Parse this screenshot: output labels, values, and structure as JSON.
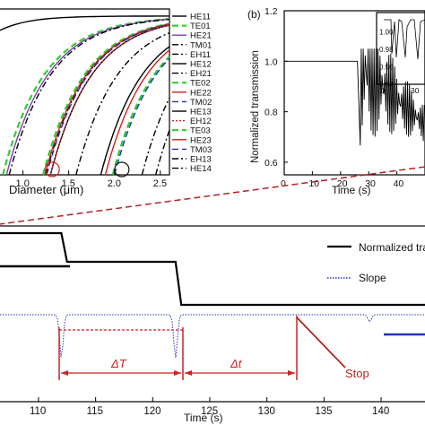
{
  "chart_data": [
    {
      "panel": "mode-dispersion",
      "type": "line",
      "panel_label": "",
      "xlabel": "Diameter (μm)",
      "ylabel": "",
      "xlim": [
        0.75,
        2.6
      ],
      "ylim": [
        1.0,
        1.47
      ],
      "x_ticks": [
        "1.0",
        "1.5",
        "2.0",
        "2.5"
      ],
      "legend_position": "right",
      "series": [
        {
          "name": "HE11",
          "color": "#000000",
          "dash": "solid",
          "cutoff": 0.0
        },
        {
          "name": "TE01",
          "color": "#33cc33",
          "dash": "dashed",
          "cutoff": 0.78
        },
        {
          "name": "HE21",
          "color": "#8040b0",
          "dash": "solid",
          "cutoff": 0.82
        },
        {
          "name": "TM01",
          "color": "#000000",
          "dash": "dashdot",
          "cutoff": 0.85
        },
        {
          "name": "EH11",
          "color": "#000000",
          "dash": "dashdot",
          "cutoff": 1.25
        },
        {
          "name": "HE12",
          "color": "#000000",
          "dash": "solid",
          "cutoff": 1.3
        },
        {
          "name": "EH21",
          "color": "#000000",
          "dash": "dashdot",
          "cutoff": 1.58
        },
        {
          "name": "TE02",
          "color": "#33cc33",
          "dash": "dashed",
          "cutoff": 1.22
        },
        {
          "name": "HE22",
          "color": "#cc2222",
          "dash": "solid",
          "cutoff": 1.24
        },
        {
          "name": "TM02",
          "color": "#2233aa",
          "dash": "dashed",
          "cutoff": 1.26
        },
        {
          "name": "HE13",
          "color": "#000000",
          "dash": "solid",
          "cutoff": 1.85
        },
        {
          "name": "EH12",
          "color": "#cc2222",
          "dash": "dotted",
          "cutoff": 1.3
        },
        {
          "name": "TE03",
          "color": "#33cc33",
          "dash": "dashed",
          "cutoff": 1.98
        },
        {
          "name": "HE23",
          "color": "#cc2222",
          "dash": "solid",
          "cutoff": 1.9
        },
        {
          "name": "TM03",
          "color": "#2233aa",
          "dash": "dashed",
          "cutoff": 2.0
        },
        {
          "name": "EH13",
          "color": "#000000",
          "dash": "dashdot",
          "cutoff": 2.3
        },
        {
          "name": "HE14",
          "color": "#000000",
          "dash": "dashdot",
          "cutoff": 2.45
        }
      ],
      "annotations": [
        {
          "shape": "circle",
          "x": 1.32,
          "y": 1.0,
          "color": "#cc2222"
        },
        {
          "shape": "circle",
          "x": 2.08,
          "y": 1.0,
          "color": "#111111"
        }
      ]
    },
    {
      "panel": "transmission-vs-time",
      "type": "line",
      "panel_label": "(b)",
      "xlabel": "Time (s)",
      "ylabel": "Normalized transmission",
      "xlim": [
        0,
        50
      ],
      "ylim": [
        0.55,
        1.2
      ],
      "x_ticks": [
        "0",
        "10",
        "20",
        "30",
        "40"
      ],
      "y_ticks": [
        "0.6",
        "0.8",
        "1.0",
        "1.2"
      ],
      "series": [
        {
          "name": "transmission",
          "color": "#000000",
          "segments": [
            [
              0,
              1.0
            ],
            [
              26,
              1.0
            ],
            [
              28,
              0.98
            ],
            [
              50,
              0.72
            ]
          ]
        }
      ],
      "inset": {
        "xlim": [
          0,
          45
        ],
        "ylim": [
          0.94,
          1.02
        ],
        "x_ticks": [
          "0",
          "30"
        ],
        "y_ticks": [
          "0.94",
          "0.96",
          "0.98",
          "1.00"
        ]
      }
    },
    {
      "panel": "transmission-and-slope",
      "type": "line",
      "xlabel": "Time (s)",
      "xlim": [
        106,
        144
      ],
      "x_ticks": [
        "110",
        "115",
        "120",
        "125",
        "130",
        "135",
        "140"
      ],
      "legend_position": "top-right",
      "series": [
        {
          "name": "Normalized transmission",
          "color": "#000000",
          "dash": "solid",
          "x": [
            106,
            112,
            112.5,
            122,
            122.5,
            144
          ],
          "y": [
            1.0,
            1.0,
            0.7,
            0.7,
            0.4,
            0.4
          ]
        },
        {
          "name": "Slope",
          "color": "#2233aa",
          "dash": "dotted",
          "dips_at": [
            112,
            122,
            139
          ]
        }
      ],
      "annotations": [
        {
          "text": "ΔT",
          "from": 112,
          "to": 122
        },
        {
          "text": "Δt",
          "from": 122,
          "to": 131.5
        },
        {
          "text": "Stop",
          "at": 131.5
        }
      ]
    }
  ]
}
